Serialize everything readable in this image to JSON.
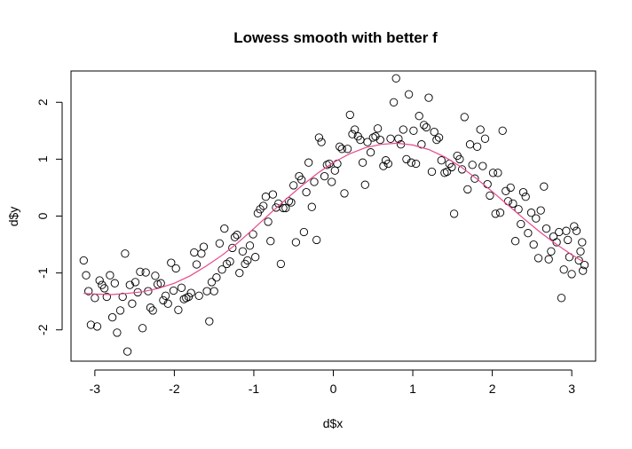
{
  "chart_data": {
    "type": "scatter",
    "title": "Lowess smooth with better f",
    "xlabel": "d$x",
    "ylabel": "d$y",
    "xlim": [
      -3.3,
      3.3
    ],
    "ylim": [
      -2.55,
      2.55
    ],
    "x_ticks": [
      -3,
      -2,
      -1,
      0,
      1,
      2,
      3
    ],
    "y_ticks": [
      -2,
      -1,
      0,
      1,
      2
    ],
    "x_tick_labels": [
      "-3",
      "-2",
      "-1",
      "0",
      "1",
      "2",
      "3"
    ],
    "y_tick_labels": [
      "-2",
      "-1",
      "0",
      "1",
      "2"
    ],
    "grid": false,
    "legend": "none",
    "point_color": "#000000",
    "line_color": "#e8478b",
    "points": [
      [
        -3.14,
        -0.78
      ],
      [
        -3.11,
        -1.04
      ],
      [
        -3.08,
        -1.32
      ],
      [
        -3.05,
        -1.91
      ],
      [
        -3.0,
        -1.44
      ],
      [
        -2.97,
        -1.94
      ],
      [
        -2.94,
        -1.13
      ],
      [
        -2.91,
        -1.21
      ],
      [
        -2.88,
        -1.27
      ],
      [
        -2.85,
        -1.42
      ],
      [
        -2.81,
        -1.04
      ],
      [
        -2.78,
        -1.78
      ],
      [
        -2.75,
        -1.18
      ],
      [
        -2.72,
        -2.05
      ],
      [
        -2.68,
        -1.66
      ],
      [
        -2.65,
        -1.42
      ],
      [
        -2.62,
        -0.66
      ],
      [
        -2.59,
        -2.38
      ],
      [
        -2.56,
        -1.21
      ],
      [
        -2.53,
        -1.54
      ],
      [
        -2.49,
        -1.16
      ],
      [
        -2.46,
        -1.34
      ],
      [
        -2.43,
        -0.98
      ],
      [
        -2.4,
        -1.97
      ],
      [
        -2.36,
        -0.99
      ],
      [
        -2.33,
        -1.32
      ],
      [
        -2.3,
        -1.61
      ],
      [
        -2.27,
        -1.66
      ],
      [
        -2.24,
        -1.05
      ],
      [
        -2.21,
        -1.2
      ],
      [
        -2.17,
        -1.18
      ],
      [
        -2.14,
        -1.48
      ],
      [
        -2.11,
        -1.4
      ],
      [
        -2.08,
        -1.54
      ],
      [
        -2.04,
        -0.82
      ],
      [
        -2.01,
        -1.31
      ],
      [
        -1.98,
        -0.92
      ],
      [
        -1.95,
        -1.65
      ],
      [
        -1.91,
        -1.26
      ],
      [
        -1.88,
        -1.46
      ],
      [
        -1.85,
        -1.44
      ],
      [
        -1.82,
        -1.42
      ],
      [
        -1.79,
        -1.35
      ],
      [
        -1.75,
        -0.64
      ],
      [
        -1.72,
        -0.85
      ],
      [
        -1.69,
        -1.4
      ],
      [
        -1.66,
        -0.66
      ],
      [
        -1.63,
        -0.54
      ],
      [
        -1.59,
        -1.32
      ],
      [
        -1.56,
        -1.85
      ],
      [
        -1.53,
        -1.16
      ],
      [
        -1.5,
        -1.32
      ],
      [
        -1.47,
        -1.08
      ],
      [
        -1.43,
        -0.48
      ],
      [
        -1.4,
        -0.94
      ],
      [
        -1.37,
        -0.22
      ],
      [
        -1.34,
        -0.84
      ],
      [
        -1.3,
        -0.8
      ],
      [
        -1.27,
        -0.56
      ],
      [
        -1.24,
        -0.37
      ],
      [
        -1.21,
        -0.33
      ],
      [
        -1.18,
        -1.0
      ],
      [
        -1.14,
        -0.62
      ],
      [
        -1.11,
        -0.84
      ],
      [
        -1.08,
        -0.78
      ],
      [
        -1.05,
        -0.52
      ],
      [
        -1.01,
        -0.32
      ],
      [
        -0.98,
        -0.72
      ],
      [
        -0.95,
        0.05
      ],
      [
        -0.92,
        0.12
      ],
      [
        -0.88,
        0.18
      ],
      [
        -0.85,
        0.34
      ],
      [
        -0.82,
        -0.1
      ],
      [
        -0.79,
        -0.44
      ],
      [
        -0.76,
        0.38
      ],
      [
        -0.72,
        0.15
      ],
      [
        -0.69,
        0.22
      ],
      [
        -0.66,
        -0.84
      ],
      [
        -0.63,
        0.14
      ],
      [
        -0.6,
        0.14
      ],
      [
        -0.56,
        0.26
      ],
      [
        -0.53,
        0.24
      ],
      [
        -0.5,
        0.54
      ],
      [
        -0.47,
        -0.46
      ],
      [
        -0.43,
        0.7
      ],
      [
        -0.4,
        0.64
      ],
      [
        -0.37,
        -0.28
      ],
      [
        -0.34,
        0.42
      ],
      [
        -0.31,
        0.94
      ],
      [
        -0.27,
        0.16
      ],
      [
        -0.24,
        0.6
      ],
      [
        -0.21,
        -0.42
      ],
      [
        -0.18,
        1.38
      ],
      [
        -0.15,
        1.3
      ],
      [
        -0.11,
        0.7
      ],
      [
        -0.08,
        0.9
      ],
      [
        -0.05,
        0.92
      ],
      [
        -0.02,
        0.6
      ],
      [
        0.02,
        0.8
      ],
      [
        0.05,
        0.92
      ],
      [
        0.08,
        1.22
      ],
      [
        0.11,
        1.18
      ],
      [
        0.14,
        0.4
      ],
      [
        0.18,
        1.18
      ],
      [
        0.21,
        1.78
      ],
      [
        0.24,
        1.44
      ],
      [
        0.27,
        1.52
      ],
      [
        0.31,
        1.4
      ],
      [
        0.34,
        1.34
      ],
      [
        0.37,
        0.94
      ],
      [
        0.4,
        0.55
      ],
      [
        0.43,
        1.3
      ],
      [
        0.47,
        1.12
      ],
      [
        0.5,
        1.38
      ],
      [
        0.53,
        1.4
      ],
      [
        0.56,
        1.54
      ],
      [
        0.59,
        1.34
      ],
      [
        0.63,
        0.88
      ],
      [
        0.66,
        0.98
      ],
      [
        0.69,
        0.92
      ],
      [
        0.72,
        1.36
      ],
      [
        0.76,
        2.0
      ],
      [
        0.79,
        2.42
      ],
      [
        0.82,
        1.36
      ],
      [
        0.85,
        1.26
      ],
      [
        0.88,
        1.52
      ],
      [
        0.92,
        1.0
      ],
      [
        0.95,
        2.14
      ],
      [
        0.98,
        0.94
      ],
      [
        1.01,
        1.5
      ],
      [
        1.04,
        0.92
      ],
      [
        1.08,
        1.76
      ],
      [
        1.11,
        1.26
      ],
      [
        1.14,
        1.6
      ],
      [
        1.17,
        1.56
      ],
      [
        1.2,
        2.08
      ],
      [
        1.24,
        0.78
      ],
      [
        1.27,
        1.48
      ],
      [
        1.3,
        1.34
      ],
      [
        1.33,
        1.38
      ],
      [
        1.36,
        0.98
      ],
      [
        1.4,
        0.76
      ],
      [
        1.43,
        0.78
      ],
      [
        1.46,
        0.92
      ],
      [
        1.49,
        0.86
      ],
      [
        1.52,
        0.04
      ],
      [
        1.56,
        1.06
      ],
      [
        1.59,
        1.0
      ],
      [
        1.62,
        0.82
      ],
      [
        1.65,
        1.74
      ],
      [
        1.69,
        0.47
      ],
      [
        1.72,
        1.26
      ],
      [
        1.75,
        0.9
      ],
      [
        1.78,
        0.66
      ],
      [
        1.81,
        1.22
      ],
      [
        1.85,
        1.52
      ],
      [
        1.88,
        0.88
      ],
      [
        1.91,
        1.36
      ],
      [
        1.94,
        0.56
      ],
      [
        1.97,
        0.36
      ],
      [
        2.01,
        0.76
      ],
      [
        2.04,
        0.04
      ],
      [
        2.07,
        0.76
      ],
      [
        2.1,
        0.06
      ],
      [
        2.13,
        1.5
      ],
      [
        2.17,
        0.44
      ],
      [
        2.2,
        0.26
      ],
      [
        2.23,
        0.5
      ],
      [
        2.26,
        0.22
      ],
      [
        2.29,
        -0.44
      ],
      [
        2.33,
        0.12
      ],
      [
        2.36,
        -0.14
      ],
      [
        2.39,
        0.42
      ],
      [
        2.42,
        0.34
      ],
      [
        2.45,
        -0.3
      ],
      [
        2.49,
        0.06
      ],
      [
        2.52,
        -0.5
      ],
      [
        2.55,
        -0.04
      ],
      [
        2.58,
        -0.74
      ],
      [
        2.61,
        0.1
      ],
      [
        2.65,
        0.52
      ],
      [
        2.68,
        -0.22
      ],
      [
        2.71,
        -0.76
      ],
      [
        2.74,
        -0.62
      ],
      [
        2.77,
        -0.36
      ],
      [
        2.81,
        -0.46
      ],
      [
        2.84,
        -0.28
      ],
      [
        2.87,
        -1.44
      ],
      [
        2.9,
        -0.94
      ],
      [
        2.93,
        -0.26
      ],
      [
        2.97,
        -0.72
      ],
      [
        3.0,
        -1.02
      ],
      [
        3.03,
        -0.18
      ],
      [
        3.06,
        -0.26
      ],
      [
        3.09,
        -0.78
      ],
      [
        3.13,
        -0.46
      ],
      [
        3.16,
        -0.86
      ],
      [
        2.95,
        -0.42
      ],
      [
        3.11,
        -0.62
      ],
      [
        3.14,
        -0.96
      ]
    ],
    "smooth_line": [
      [
        -3.14,
        -1.36
      ],
      [
        -3.0,
        -1.37
      ],
      [
        -2.8,
        -1.38
      ],
      [
        -2.6,
        -1.36
      ],
      [
        -2.4,
        -1.33
      ],
      [
        -2.2,
        -1.27
      ],
      [
        -2.0,
        -1.18
      ],
      [
        -1.8,
        -1.05
      ],
      [
        -1.6,
        -0.88
      ],
      [
        -1.4,
        -0.69
      ],
      [
        -1.2,
        -0.47
      ],
      [
        -1.0,
        -0.22
      ],
      [
        -0.8,
        0.04
      ],
      [
        -0.6,
        0.29
      ],
      [
        -0.4,
        0.53
      ],
      [
        -0.2,
        0.75
      ],
      [
        0.0,
        0.94
      ],
      [
        0.2,
        1.09
      ],
      [
        0.4,
        1.2
      ],
      [
        0.6,
        1.26
      ],
      [
        0.8,
        1.28
      ],
      [
        1.0,
        1.25
      ],
      [
        1.2,
        1.17
      ],
      [
        1.4,
        1.04
      ],
      [
        1.6,
        0.87
      ],
      [
        1.8,
        0.66
      ],
      [
        2.0,
        0.43
      ],
      [
        2.2,
        0.19
      ],
      [
        2.4,
        -0.05
      ],
      [
        2.6,
        -0.28
      ],
      [
        2.8,
        -0.49
      ],
      [
        3.0,
        -0.68
      ],
      [
        3.14,
        -0.8
      ]
    ]
  }
}
